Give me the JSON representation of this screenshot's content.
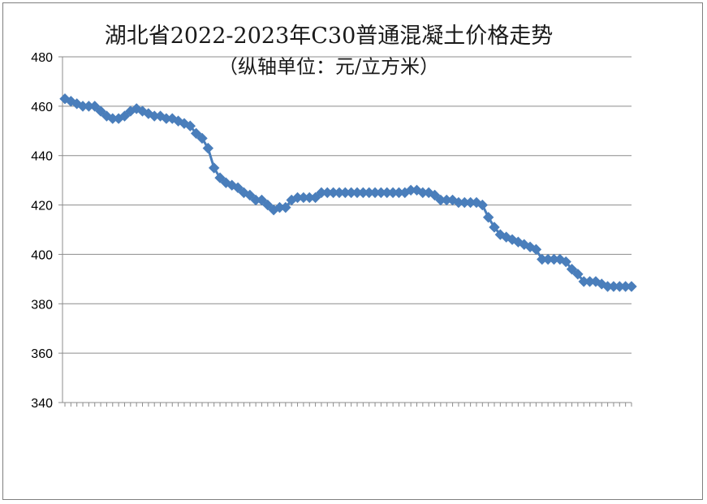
{
  "chart_data": {
    "type": "line",
    "title": "湖北省2022-2023年C30普通混凝土价格走势",
    "subtitle": "（纵轴单位：元/立方米）",
    "ylim": [
      340,
      480
    ],
    "y_ticks": [
      340,
      360,
      380,
      400,
      420,
      440,
      460,
      480
    ],
    "grid": "horizontal",
    "legend": "none",
    "series_color": "#4a7ebb",
    "marker": "diamond",
    "values": [
      463,
      462,
      461,
      460,
      460,
      460,
      458,
      456,
      455,
      455,
      456,
      458,
      459,
      458,
      457,
      456,
      456,
      455,
      455,
      454,
      453,
      452,
      449,
      447,
      443,
      435,
      431,
      429,
      428,
      427,
      425,
      424,
      422,
      422,
      420,
      418,
      419,
      419,
      422,
      423,
      423,
      423,
      423,
      425,
      425,
      425,
      425,
      425,
      425,
      425,
      425,
      425,
      425,
      425,
      425,
      425,
      425,
      425,
      426,
      426,
      425,
      425,
      424,
      422,
      422,
      422,
      421,
      421,
      421,
      421,
      420,
      415,
      411,
      408,
      407,
      406,
      405,
      404,
      403,
      402,
      398,
      398,
      398,
      398,
      397,
      394,
      392,
      389,
      389,
      389,
      388,
      387,
      387,
      387,
      387,
      387
    ]
  }
}
